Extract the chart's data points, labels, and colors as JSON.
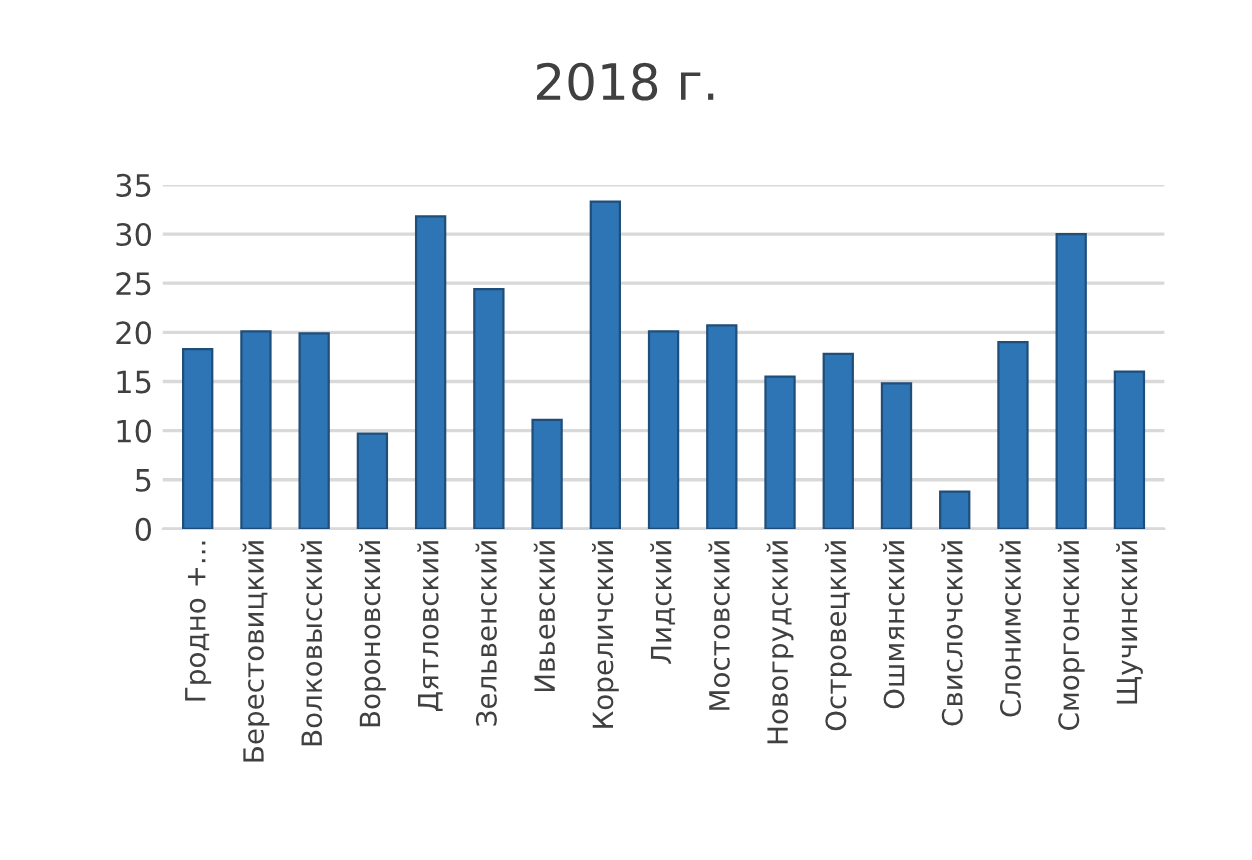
{
  "chart_data": {
    "type": "bar",
    "title": "2018 г.",
    "categories": [
      "Гродно +...",
      "Берестовицкий",
      "Волковысский",
      "Вороновский",
      "Дятловский",
      "Зельвенский",
      "Ивьевский",
      "Кореличский",
      "Лидский",
      "Мостовский",
      "Новогрудский",
      "Островецкий",
      "Ошмянский",
      "Свислочский",
      "Слонимский",
      "Сморгонский",
      "Щучинский"
    ],
    "values": [
      18.3,
      20.1,
      19.9,
      9.7,
      31.8,
      24.4,
      11.1,
      33.3,
      20.1,
      20.7,
      15.5,
      17.8,
      14.8,
      3.8,
      19.0,
      30.0,
      16.0
    ],
    "color": "#2e75b6",
    "ylim": [
      0,
      35
    ],
    "yticks": [
      0,
      5,
      10,
      15,
      20,
      25,
      30,
      35
    ],
    "grid": "y"
  }
}
